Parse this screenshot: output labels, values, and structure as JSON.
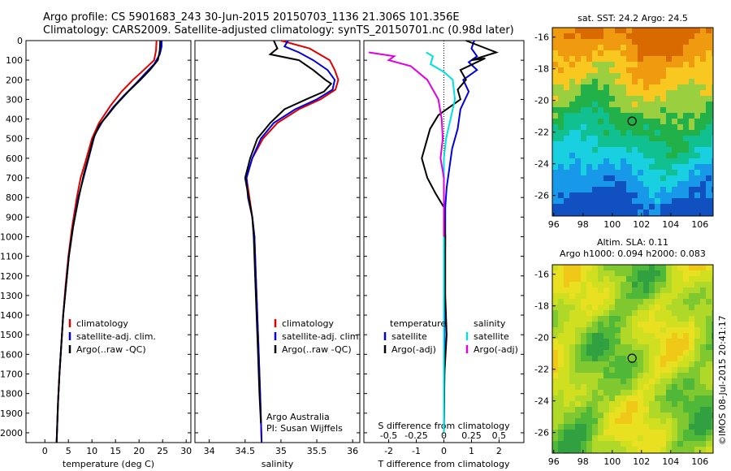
{
  "header": {
    "line1": "Argo profile: CS 5901683_243 30-Jun-2015 20150703_1136 21.306S 101.356E",
    "line2": "Climatology: CARS2009. Satellite-adjusted climatology: synTS_20150701.nc (0.98d later)"
  },
  "colors": {
    "climatology": "#e00000",
    "satellite": "#0000e0",
    "argo": "#000000",
    "sal_satellite": "#00e0e0",
    "sal_argo": "#e000e0"
  },
  "depth_axis": {
    "ylim": [
      0,
      2050
    ],
    "ticks": [
      0,
      100,
      200,
      300,
      400,
      500,
      600,
      700,
      800,
      900,
      1000,
      1100,
      1200,
      1300,
      1400,
      1500,
      1600,
      1700,
      1800,
      1900,
      2000
    ]
  },
  "watermark": "©IMOS 08-Jul-2015 20:41:17",
  "credit": {
    "line1": "Argo Australia",
    "line2": "PI: Susan Wijffels"
  },
  "panels": {
    "temperature": {
      "xlabel": "temperature (deg C)",
      "xticks": [
        "0",
        "5",
        "10",
        "15",
        "20",
        "25",
        "30"
      ],
      "legend": [
        "climatology",
        "satellite-adj. clim.",
        "Argo(..raw -QC)"
      ]
    },
    "salinity": {
      "xlabel": "salinity",
      "xticks": [
        "34",
        "34.5",
        "35",
        "35.5",
        "36"
      ],
      "legend": [
        "climatology",
        "satellite-adj. clim.",
        "Argo(..raw -QC)"
      ]
    },
    "difference": {
      "top_xlabel": "S difference from climatology",
      "top_xticks": [
        "-0.5",
        "-0.25",
        "0",
        "0.25",
        "0.5"
      ],
      "xlabel": "T difference from climatology",
      "xticks": [
        "-2",
        "-1",
        "0",
        "1",
        "2"
      ],
      "legend_t_title": "temperature",
      "legend_s_title": "salinity",
      "legend_t": [
        "satellite",
        "Argo(-adj)"
      ],
      "legend_s": [
        "satellite",
        "Argo(-adj)"
      ]
    }
  },
  "maps": {
    "sst": {
      "title": "sat. SST: 24.2  Argo: 24.5",
      "xticks": [
        "96",
        "98",
        "100",
        "102",
        "104",
        "106"
      ],
      "yticks": [
        "-16",
        "-18",
        "-20",
        "-22",
        "-24",
        "-26"
      ]
    },
    "sla": {
      "title_line1": "Altim. SLA: 0.11",
      "title_line2": "Argo h1000: 0.094  h2000: 0.083",
      "xticks": [
        "96",
        "98",
        "100",
        "102",
        "104",
        "106"
      ],
      "yticks": [
        "-16",
        "-18",
        "-20",
        "-22",
        "-24",
        "-26"
      ]
    }
  },
  "chart_data": [
    {
      "type": "line",
      "xlabel": "temperature (deg C)",
      "ylabel": "",
      "xlim": [
        -4,
        31
      ],
      "ylim": [
        2050,
        0
      ],
      "series": [
        {
          "name": "climatology",
          "color": "#e00000",
          "points": [
            [
              23.7,
              0
            ],
            [
              23.6,
              50
            ],
            [
              23.2,
              100
            ],
            [
              21,
              150
            ],
            [
              18.7,
              200
            ],
            [
              16.3,
              260
            ],
            [
              14,
              330
            ],
            [
              11.5,
              420
            ],
            [
              10,
              500
            ],
            [
              8.6,
              620
            ],
            [
              7.6,
              700
            ],
            [
              6.8,
              800
            ],
            [
              5.8,
              950
            ],
            [
              5,
              1100
            ],
            [
              4.4,
              1250
            ],
            [
              3.9,
              1400
            ],
            [
              3.5,
              1550
            ],
            [
              3.1,
              1700
            ],
            [
              2.8,
              1850
            ],
            [
              2.5,
              2050
            ]
          ]
        },
        {
          "name": "satellite-adj. clim.",
          "color": "#0000e0",
          "points": [
            [
              24.8,
              0
            ],
            [
              24.8,
              30
            ],
            [
              24.4,
              70
            ],
            [
              23.2,
              120
            ],
            [
              21.2,
              170
            ],
            [
              19.3,
              220
            ],
            [
              16.8,
              280
            ],
            [
              14.5,
              340
            ],
            [
              12.3,
              410
            ],
            [
              10.6,
              480
            ],
            [
              9.3,
              600
            ],
            [
              8.2,
              700
            ],
            [
              7.1,
              800
            ],
            [
              6,
              950
            ],
            [
              5.1,
              1100
            ],
            [
              4.5,
              1250
            ],
            [
              3.9,
              1400
            ],
            [
              3.5,
              1550
            ],
            [
              3.1,
              1700
            ],
            [
              2.8,
              1850
            ],
            [
              2.5,
              2050
            ]
          ]
        },
        {
          "name": "Argo(..raw -QC)",
          "color": "#000000",
          "points": [
            [
              24.5,
              0
            ],
            [
              24.4,
              50
            ],
            [
              24,
              100
            ],
            [
              22.3,
              150
            ],
            [
              20.3,
              200
            ],
            [
              17.7,
              260
            ],
            [
              15,
              330
            ],
            [
              13,
              390
            ],
            [
              11.6,
              430
            ],
            [
              10.3,
              500
            ],
            [
              9.2,
              600
            ],
            [
              8.3,
              680
            ],
            [
              7.2,
              800
            ],
            [
              6,
              950
            ],
            [
              5.1,
              1100
            ],
            [
              4.5,
              1250
            ],
            [
              3.9,
              1400
            ],
            [
              3.5,
              1550
            ],
            [
              3.1,
              1700
            ],
            [
              2.8,
              1850
            ],
            [
              2.5,
              2050
            ]
          ]
        }
      ]
    },
    {
      "type": "line",
      "xlabel": "salinity",
      "ylabel": "",
      "xlim": [
        33.8,
        36.1
      ],
      "ylim": [
        2050,
        0
      ],
      "series": [
        {
          "name": "climatology",
          "color": "#e00000",
          "points": [
            [
              35.0,
              0
            ],
            [
              35.4,
              40
            ],
            [
              35.68,
              100
            ],
            [
              35.75,
              150
            ],
            [
              35.8,
              200
            ],
            [
              35.76,
              250
            ],
            [
              35.55,
              300
            ],
            [
              35.25,
              350
            ],
            [
              34.95,
              420
            ],
            [
              34.75,
              500
            ],
            [
              34.6,
              600
            ],
            [
              34.52,
              700
            ],
            [
              34.56,
              800
            ],
            [
              34.6,
              900
            ],
            [
              34.63,
              1000
            ],
            [
              34.65,
              1200
            ],
            [
              34.67,
              1400
            ],
            [
              34.69,
              1600
            ],
            [
              34.71,
              1800
            ],
            [
              34.73,
              2050
            ]
          ]
        },
        {
          "name": "satellite-adj. clim.",
          "color": "#0000e0",
          "points": [
            [
              35.1,
              0
            ],
            [
              35.05,
              30
            ],
            [
              35.25,
              60
            ],
            [
              35.45,
              100
            ],
            [
              35.65,
              150
            ],
            [
              35.75,
              200
            ],
            [
              35.72,
              250
            ],
            [
              35.5,
              300
            ],
            [
              35.2,
              350
            ],
            [
              34.9,
              420
            ],
            [
              34.72,
              500
            ],
            [
              34.6,
              600
            ],
            [
              34.52,
              700
            ],
            [
              34.54,
              800
            ],
            [
              34.6,
              900
            ],
            [
              34.63,
              1000
            ],
            [
              34.65,
              1200
            ],
            [
              34.67,
              1400
            ],
            [
              34.69,
              1600
            ],
            [
              34.71,
              1800
            ],
            [
              34.73,
              2050
            ]
          ]
        },
        {
          "name": "Argo(..raw -QC)",
          "color": "#000000",
          "points": [
            [
              34.9,
              0
            ],
            [
              34.95,
              40
            ],
            [
              34.85,
              70
            ],
            [
              35.25,
              100
            ],
            [
              35.45,
              150
            ],
            [
              35.62,
              200
            ],
            [
              35.7,
              220
            ],
            [
              35.6,
              260
            ],
            [
              35.35,
              300
            ],
            [
              35.05,
              350
            ],
            [
              34.85,
              420
            ],
            [
              34.67,
              500
            ],
            [
              34.57,
              600
            ],
            [
              34.5,
              700
            ],
            [
              34.55,
              800
            ],
            [
              34.6,
              900
            ],
            [
              34.62,
              1000
            ],
            [
              34.64,
              1200
            ],
            [
              34.66,
              1400
            ],
            [
              34.68,
              1600
            ],
            [
              34.7,
              1800
            ],
            [
              34.72,
              1950
            ]
          ]
        }
      ]
    },
    {
      "type": "line",
      "xlabel": "T difference from climatology",
      "ylabel": "",
      "xlim": [
        -2.9,
        2.9
      ],
      "ylim": [
        2050,
        0
      ],
      "top_axis": {
        "label": "S difference from climatology",
        "xlim": [
          -0.725,
          0.725
        ]
      },
      "series": [
        {
          "name": "T satellite",
          "color": "#0000e0",
          "points": [
            [
              1.1,
              0
            ],
            [
              1.0,
              40
            ],
            [
              1.2,
              80
            ],
            [
              0.9,
              110
            ],
            [
              1.2,
              150
            ],
            [
              0.7,
              200
            ],
            [
              0.9,
              260
            ],
            [
              0.6,
              350
            ],
            [
              0.5,
              450
            ],
            [
              0.3,
              550
            ],
            [
              0.2,
              650
            ],
            [
              0.1,
              750
            ],
            [
              0.05,
              850
            ],
            [
              0.05,
              1000
            ],
            [
              0.03,
              1300
            ],
            [
              0.02,
              1700
            ],
            [
              0.0,
              2000
            ]
          ]
        },
        {
          "name": "T Argo(-adj)",
          "color": "#000000",
          "points": [
            [
              0.8,
              0
            ],
            [
              1.9,
              60
            ],
            [
              1.0,
              100
            ],
            [
              1.5,
              90
            ],
            [
              0.6,
              150
            ],
            [
              0.8,
              200
            ],
            [
              0.5,
              250
            ],
            [
              0.6,
              300
            ],
            [
              -0.2,
              380
            ],
            [
              -0.5,
              450
            ],
            [
              -0.6,
              500
            ],
            [
              -0.8,
              600
            ],
            [
              -0.6,
              700
            ],
            [
              -0.3,
              780
            ],
            [
              0.0,
              850
            ],
            [
              0.05,
              1000
            ],
            [
              0.05,
              1300
            ],
            [
              0.1,
              1500
            ],
            [
              0.02,
              1700
            ],
            [
              0.0,
              2000
            ]
          ]
        },
        {
          "name": "S satellite",
          "color": "#00e0e0",
          "points": [
            [
              -0.16,
              60
            ],
            [
              -0.1,
              80
            ],
            [
              -0.12,
              120
            ],
            [
              0.0,
              160
            ],
            [
              0.08,
              200
            ],
            [
              0.1,
              300
            ],
            [
              0.06,
              400
            ],
            [
              0.02,
              500
            ],
            [
              0.0,
              600
            ],
            [
              0.0,
              700
            ],
            [
              0.0,
              800
            ],
            [
              0.0,
              1000
            ],
            [
              0.0,
              1500
            ],
            [
              0.0,
              2000
            ]
          ]
        },
        {
          "name": "S Argo(-adj)",
          "color": "#e000e0",
          "points": [
            [
              -0.68,
              60
            ],
            [
              -0.45,
              80
            ],
            [
              -0.5,
              100
            ],
            [
              -0.3,
              130
            ],
            [
              -0.15,
              200
            ],
            [
              -0.05,
              300
            ],
            [
              -0.02,
              400
            ],
            [
              -0.01,
              500
            ],
            [
              -0.03,
              600
            ],
            [
              0.0,
              700
            ],
            [
              0.0,
              850
            ],
            [
              0.0,
              1000
            ]
          ]
        }
      ]
    }
  ]
}
